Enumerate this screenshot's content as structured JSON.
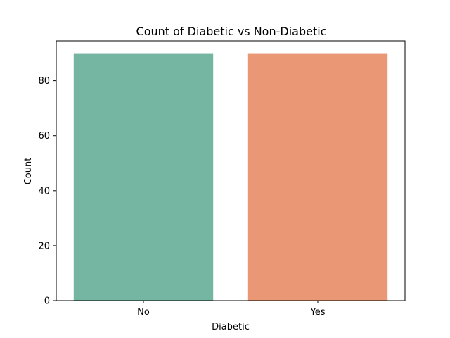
{
  "chart_data": {
    "type": "bar",
    "title": "Count of Diabetic vs Non-Diabetic",
    "xlabel": "Diabetic",
    "ylabel": "Count",
    "categories": [
      "No",
      "Yes"
    ],
    "values": [
      90,
      90
    ],
    "colors": [
      "#74b6a1",
      "#e99774"
    ],
    "ylim": [
      0,
      94.5
    ],
    "yticks": [
      0,
      20,
      40,
      60,
      80
    ],
    "grid": false,
    "legend": "none"
  }
}
